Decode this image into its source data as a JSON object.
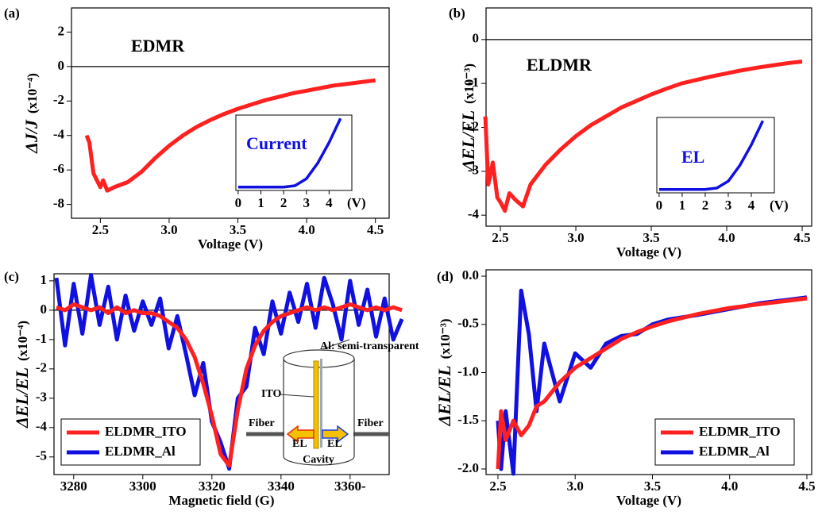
{
  "chart_data": [
    {
      "type": "line",
      "panel_label": "(a)",
      "annotation": "EDMR",
      "xlabel": "Voltage (V)",
      "ylabel": "ΔJ/J",
      "yunit": "(x10⁻⁴)",
      "xlim": [
        2.29,
        4.6
      ],
      "ylim": [
        -8.8,
        3.4
      ],
      "xticks": [
        {
          "value": 2.5,
          "label": "2.5"
        },
        {
          "value": 3,
          "label": "3.0"
        },
        {
          "value": 3.5,
          "label": "3.5"
        },
        {
          "value": 4,
          "label": "4.0"
        },
        {
          "value": 4.5,
          "label": "4.5"
        }
      ],
      "yticks": [
        -8,
        -6,
        -4,
        -2,
        0,
        2
      ],
      "zero_line": true,
      "color": "#ff2020",
      "x": [
        2.4,
        2.42,
        2.45,
        2.5,
        2.52,
        2.55,
        2.6,
        2.7,
        2.8,
        2.9,
        3.0,
        3.1,
        3.2,
        3.3,
        3.4,
        3.5,
        3.6,
        3.7,
        3.8,
        3.9,
        4.0,
        4.1,
        4.2,
        4.3,
        4.4,
        4.5
      ],
      "values": [
        -4.0,
        -4.4,
        -6.2,
        -7.0,
        -6.6,
        -7.2,
        -7.0,
        -6.7,
        -6.1,
        -5.3,
        -4.6,
        -4.0,
        -3.5,
        -3.1,
        -2.75,
        -2.45,
        -2.2,
        -1.95,
        -1.75,
        -1.55,
        -1.4,
        -1.25,
        -1.1,
        -1.0,
        -0.9,
        -0.8
      ],
      "inset": {
        "type": "line",
        "label": "Current",
        "xunit": "(V)",
        "color": "#1010e0",
        "xlim": [
          -0.1,
          5.0
        ],
        "ylim": [
          -0.05,
          1.05
        ],
        "xticks": [
          0,
          1,
          2,
          3,
          4
        ],
        "x": [
          0,
          0.5,
          1,
          1.5,
          2,
          2.5,
          3,
          3.5,
          4,
          4.5
        ],
        "values": [
          0,
          0,
          0,
          0,
          0,
          0.02,
          0.12,
          0.35,
          0.65,
          1.0
        ]
      }
    },
    {
      "type": "line",
      "panel_label": "(b)",
      "annotation": "ELDMR",
      "xlabel": "Voltage (V)",
      "ylabel": "ΔEL/EL",
      "yunit": "(x10⁻³)",
      "xlim": [
        2.405,
        4.563
      ],
      "ylim": [
        -4.25,
        0.72
      ],
      "xticks": [
        {
          "value": 2.5,
          "label": "2.5"
        },
        {
          "value": 3,
          "label": "3.0"
        },
        {
          "value": 3.5,
          "label": "3.5"
        },
        {
          "value": 4,
          "label": "4.0"
        },
        {
          "value": 4.5,
          "label": "4.5"
        }
      ],
      "yticks": [
        -4,
        -3,
        -2,
        -1,
        0
      ],
      "zero_line": true,
      "color": "#ff2020",
      "x": [
        2.4,
        2.42,
        2.45,
        2.48,
        2.5,
        2.53,
        2.56,
        2.6,
        2.65,
        2.7,
        2.8,
        2.9,
        3.0,
        3.1,
        3.2,
        3.3,
        3.4,
        3.5,
        3.6,
        3.7,
        3.8,
        3.9,
        4.0,
        4.1,
        4.2,
        4.3,
        4.4,
        4.5
      ],
      "values": [
        -1.75,
        -3.3,
        -2.8,
        -3.6,
        -3.7,
        -3.9,
        -3.5,
        -3.65,
        -3.8,
        -3.3,
        -2.85,
        -2.5,
        -2.2,
        -1.95,
        -1.75,
        -1.55,
        -1.4,
        -1.25,
        -1.12,
        -1.0,
        -0.92,
        -0.84,
        -0.77,
        -0.7,
        -0.64,
        -0.59,
        -0.54,
        -0.5
      ],
      "inset": {
        "type": "line",
        "label": "EL",
        "xunit": "(V)",
        "color": "#1010e0",
        "xlim": [
          -0.1,
          5.0
        ],
        "ylim": [
          -0.05,
          1.05
        ],
        "xticks": [
          0,
          1,
          2,
          3,
          4
        ],
        "x": [
          0,
          0.5,
          1,
          1.5,
          2,
          2.5,
          3,
          3.5,
          4,
          4.5
        ],
        "values": [
          0,
          0,
          0,
          0,
          0,
          0.02,
          0.12,
          0.35,
          0.65,
          1.0
        ]
      }
    },
    {
      "type": "line",
      "panel_label": "(c)",
      "xlabel": "Magnetic field (G)",
      "ylabel": "ΔEL/EL",
      "yunit": "(x10⁻⁴)",
      "xlim": [
        3274.3,
        3371.3
      ],
      "ylim": [
        -5.6,
        1.24
      ],
      "xticks": [
        3280,
        3300,
        3320,
        3340,
        {
          "value": 3360,
          "label": "3360-"
        }
      ],
      "yticks": [
        -5,
        -4,
        -3,
        -2,
        -1,
        0,
        1
      ],
      "zero_line": true,
      "legend": "lower left",
      "x": [
        3275,
        3277.5,
        3280,
        3282.5,
        3285,
        3287.5,
        3290,
        3292.5,
        3295,
        3297.5,
        3300,
        3302.5,
        3305,
        3307.5,
        3310,
        3312.5,
        3315,
        3317.5,
        3320,
        3322.5,
        3325,
        3327.5,
        3330,
        3332.5,
        3335,
        3337.5,
        3340,
        3342.5,
        3345,
        3347.5,
        3350,
        3352.5,
        3355,
        3357.5,
        3360,
        3362.5,
        3365,
        3367.5,
        3370,
        3372.5,
        3375
      ],
      "series": [
        {
          "name": "ELDMR_Al",
          "color": "#1010e0",
          "values": [
            1.1,
            -1.2,
            0.9,
            -0.8,
            1.2,
            -0.5,
            0.8,
            -1.0,
            0.5,
            -0.7,
            0.3,
            -0.5,
            0.4,
            -1.3,
            -0.2,
            -1.5,
            -2.9,
            -1.8,
            -3.8,
            -4.5,
            -5.4,
            -3.0,
            -2.6,
            -0.6,
            -1.5,
            0.3,
            -0.8,
            0.6,
            -0.4,
            0.9,
            -0.6,
            1.1,
            0.2,
            -1.0,
            1.0,
            -0.5,
            0.7,
            -0.9,
            0.4,
            -1.0,
            -0.3
          ]
        },
        {
          "name": "ELDMR_ITO",
          "color": "#ff2020",
          "values": [
            0.1,
            0.0,
            0.2,
            0.1,
            0.0,
            0.1,
            -0.1,
            0.1,
            -0.1,
            0.0,
            -0.1,
            -0.1,
            -0.2,
            -0.4,
            -0.6,
            -1.0,
            -1.6,
            -2.5,
            -3.6,
            -4.9,
            -5.3,
            -3.4,
            -2.0,
            -1.2,
            -0.7,
            -0.4,
            -0.2,
            -0.1,
            0.0,
            0.1,
            0.0,
            0.1,
            0.0,
            0.1,
            0.2,
            0.1,
            0.0,
            0.1,
            0.0,
            0.1,
            0.0
          ]
        }
      ],
      "diagram": {
        "top_label": "Al: semi-transparent",
        "ito": "ITO",
        "fiber_left": "Fiber",
        "el_left": "EL",
        "el_right": "EL",
        "fiber_right": "Fiber",
        "cavity": "Cavity"
      }
    },
    {
      "type": "line",
      "panel_label": "(d)",
      "xlabel": "Voltage (V)",
      "ylabel": "ΔEL/EL",
      "yunit": "(x10⁻³)",
      "xlim": [
        2.423,
        4.531
      ],
      "ylim": [
        -2.058,
        0.066
      ],
      "xticks": [
        {
          "value": 2.5,
          "label": "2.5"
        },
        {
          "value": 3,
          "label": "3.0"
        },
        {
          "value": 3.5,
          "label": "3.5"
        },
        {
          "value": 4,
          "label": "4.0"
        },
        {
          "value": 4.5,
          "label": "4.5"
        }
      ],
      "yticks": [
        {
          "value": -2,
          "label": "-2.0"
        },
        -1.5,
        {
          "value": -1,
          "label": "-1.0"
        },
        -0.5,
        {
          "value": 0,
          "label": "0.0"
        }
      ],
      "zero_line": false,
      "legend": "lower right",
      "x": [
        2.5,
        2.52,
        2.55,
        2.6,
        2.65,
        2.7,
        2.75,
        2.8,
        2.9,
        3.0,
        3.1,
        3.2,
        3.3,
        3.4,
        3.5,
        3.6,
        3.8,
        4.0,
        4.2,
        4.4,
        4.5
      ],
      "series": [
        {
          "name": "ELDMR_Al",
          "color": "#1010e0",
          "values": [
            -1.5,
            -2.0,
            -1.4,
            -2.05,
            -0.15,
            -0.6,
            -1.4,
            -0.7,
            -1.3,
            -0.8,
            -0.95,
            -0.7,
            -0.62,
            -0.6,
            -0.5,
            -0.45,
            -0.4,
            -0.34,
            -0.28,
            -0.24,
            -0.22
          ]
        },
        {
          "name": "ELDMR_ITO",
          "color": "#ff2020",
          "values": [
            -2.0,
            -1.4,
            -1.7,
            -1.5,
            -1.65,
            -1.55,
            -1.35,
            -1.3,
            -1.1,
            -0.95,
            -0.85,
            -0.75,
            -0.65,
            -0.58,
            -0.52,
            -0.47,
            -0.39,
            -0.33,
            -0.29,
            -0.25,
            -0.23
          ]
        }
      ]
    }
  ]
}
